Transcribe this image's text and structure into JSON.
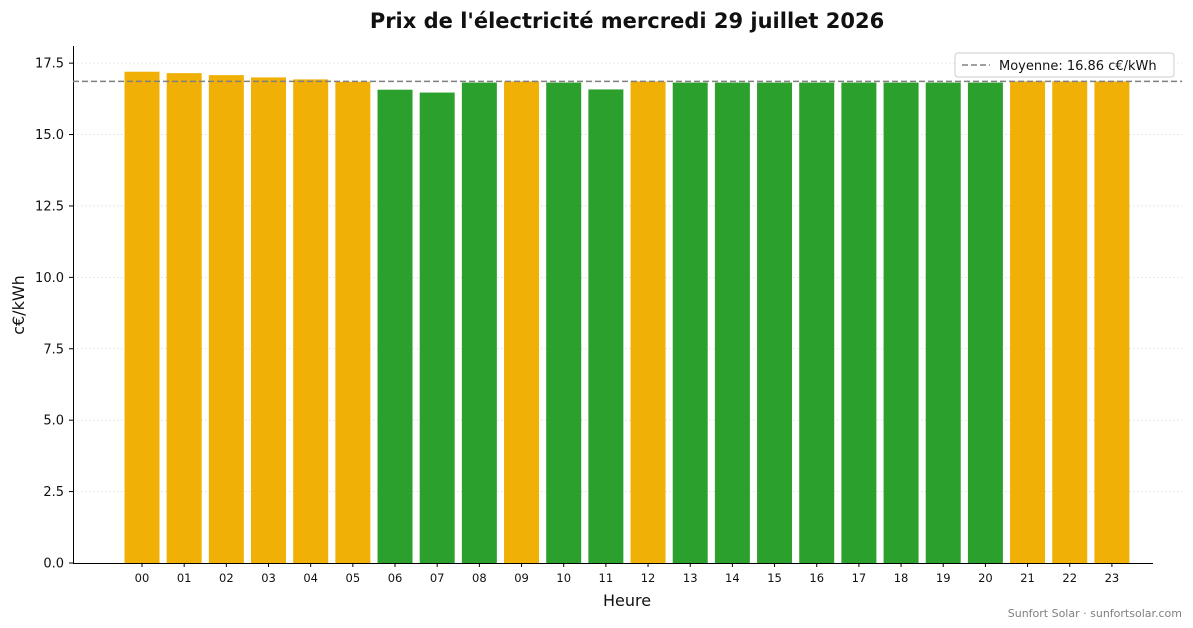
{
  "chart_data": {
    "type": "bar",
    "title": "Prix de l'électricité mercredi 29 juillet 2026",
    "xlabel": "Heure",
    "ylabel": "c€/kWh",
    "ylim": [
      0,
      18.1
    ],
    "yticks": [
      "0.0",
      "2.5",
      "5.0",
      "7.5",
      "10.0",
      "12.5",
      "15.0",
      "17.5"
    ],
    "categories": [
      "00",
      "01",
      "02",
      "03",
      "04",
      "05",
      "06",
      "07",
      "08",
      "09",
      "10",
      "11",
      "12",
      "13",
      "14",
      "15",
      "16",
      "17",
      "18",
      "19",
      "20",
      "21",
      "22",
      "23"
    ],
    "values": [
      17.2,
      17.15,
      17.08,
      17.0,
      16.93,
      16.85,
      16.57,
      16.47,
      16.82,
      16.86,
      16.82,
      16.58,
      16.86,
      16.82,
      16.82,
      16.82,
      16.82,
      16.82,
      16.82,
      16.82,
      16.82,
      16.86,
      16.86,
      16.86
    ],
    "bar_colors": [
      "#F0B005",
      "#F0B005",
      "#F0B005",
      "#F0B005",
      "#F0B005",
      "#F0B005",
      "#2CA02C",
      "#2CA02C",
      "#2CA02C",
      "#F0B005",
      "#2CA02C",
      "#2CA02C",
      "#F0B005",
      "#2CA02C",
      "#2CA02C",
      "#2CA02C",
      "#2CA02C",
      "#2CA02C",
      "#2CA02C",
      "#2CA02C",
      "#2CA02C",
      "#F0B005",
      "#F0B005",
      "#F0B005"
    ],
    "average": 16.86,
    "average_color": "#808080",
    "legend": {
      "label": "Moyenne: 16.86 c€/kWh",
      "placement": "top-right"
    },
    "grid": "horizontal-dotted"
  },
  "footer": {
    "text": "Sunfort Solar · sunfortsolar.com"
  }
}
